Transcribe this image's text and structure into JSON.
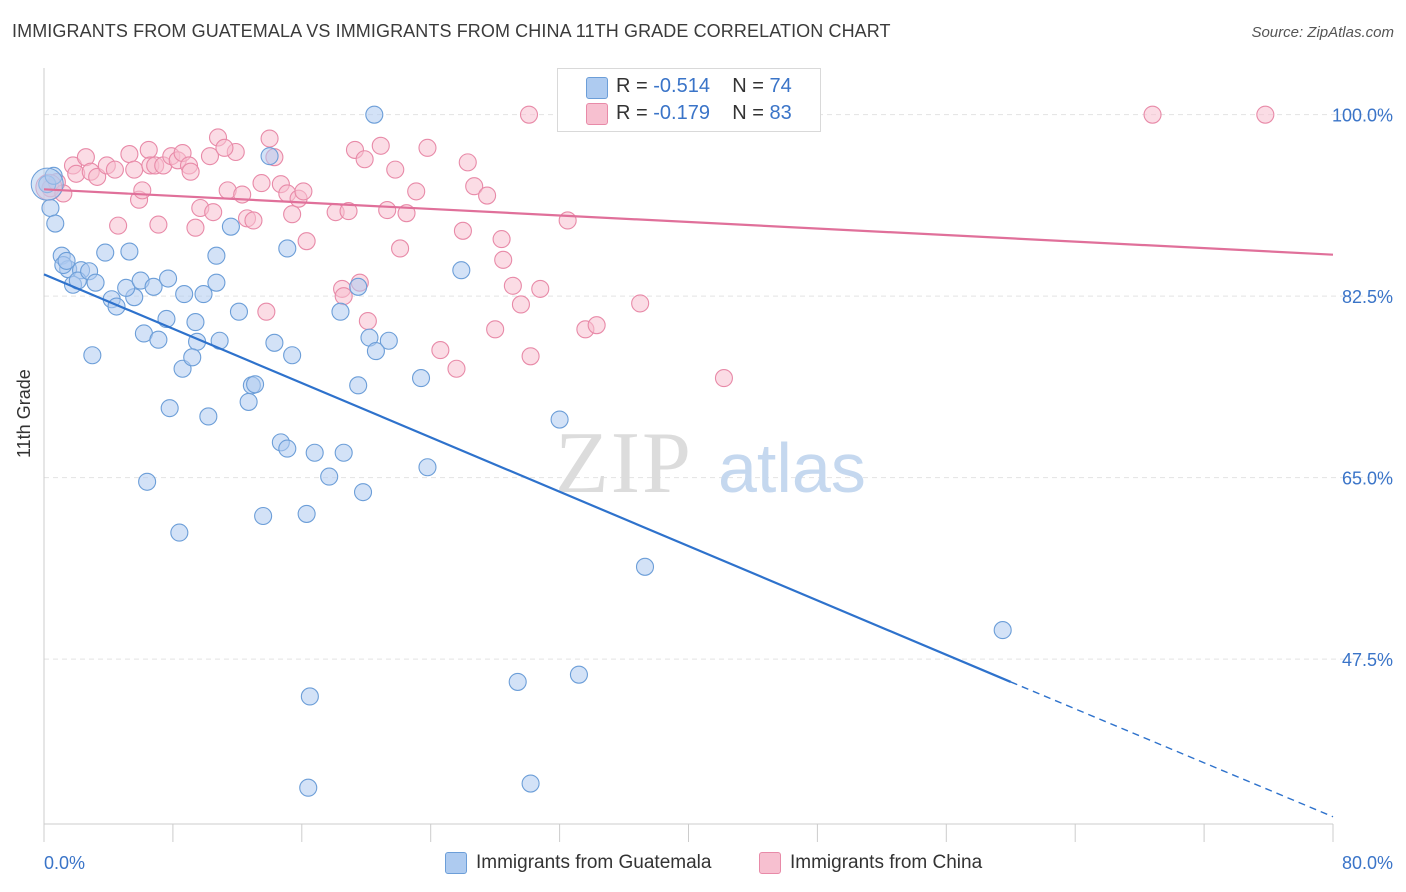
{
  "header": {
    "title": "IMMIGRANTS FROM GUATEMALA VS IMMIGRANTS FROM CHINA 11TH GRADE CORRELATION CHART",
    "source": "Source: ZipAtlas.com"
  },
  "watermark": {
    "zip": "ZIP",
    "atlas": "atlas"
  },
  "legend": {
    "rows": [
      {
        "r_label": "R =",
        "r_value": "-0.514",
        "n_label": "N =",
        "n_value": "74"
      },
      {
        "r_label": "R =",
        "r_value": "-0.179",
        "n_label": "N =",
        "n_value": "83"
      }
    ]
  },
  "colors": {
    "guatemala_fill": "#aecbf0",
    "guatemala_stroke": "#6c9ed8",
    "guatemala_line": "#2e72cc",
    "china_fill": "#f7c0d0",
    "china_stroke": "#e88aa8",
    "china_line": "#e0709a",
    "grid": "#e3e3e3",
    "tick_label": "#3a74c8"
  },
  "chart_data": {
    "type": "scatter",
    "title": "IMMIGRANTS FROM GUATEMALA VS IMMIGRANTS FROM CHINA 11TH GRADE CORRELATION CHART",
    "xlabel": "",
    "ylabel": "11th Grade",
    "xlim": [
      0,
      80
    ],
    "ylim": [
      31.6,
      104.5
    ],
    "x_ticks_labeled": [
      "0.0%",
      "80.0%"
    ],
    "y_ticks": [
      47.5,
      65.0,
      82.5,
      100.0
    ],
    "y_tick_labels": [
      "47.5%",
      "65.0%",
      "82.5%",
      "100.0%"
    ],
    "grid": true,
    "legend_position": "top-center",
    "series": [
      {
        "name": "Immigrants from Guatemala",
        "r": -0.514,
        "n": 74,
        "trend": {
          "x0": 0,
          "y0": 84.6,
          "x1": 60,
          "y1": 45.3,
          "dashed_to": [
            80,
            32.3
          ]
        },
        "points": [
          [
            0.2,
            93.3
          ],
          [
            0.6,
            94.1
          ],
          [
            0.4,
            91.0
          ],
          [
            0.7,
            89.5
          ],
          [
            1.1,
            86.4
          ],
          [
            1.5,
            85.1
          ],
          [
            1.2,
            85.5
          ],
          [
            1.4,
            85.9
          ],
          [
            2.3,
            85.0
          ],
          [
            1.8,
            83.6
          ],
          [
            2.1,
            84.0
          ],
          [
            2.8,
            84.9
          ],
          [
            3.2,
            83.8
          ],
          [
            3.8,
            86.7
          ],
          [
            5.3,
            86.8
          ],
          [
            4.2,
            82.2
          ],
          [
            4.5,
            81.5
          ],
          [
            5.6,
            82.4
          ],
          [
            5.1,
            83.3
          ],
          [
            6.0,
            84.0
          ],
          [
            6.8,
            83.4
          ],
          [
            7.7,
            84.2
          ],
          [
            8.7,
            82.7
          ],
          [
            9.9,
            82.7
          ],
          [
            10.7,
            83.8
          ],
          [
            7.6,
            80.3
          ],
          [
            9.4,
            80.0
          ],
          [
            12.1,
            81.0
          ],
          [
            11.6,
            89.2
          ],
          [
            10.7,
            86.4
          ],
          [
            14.0,
            96.0
          ],
          [
            15.1,
            87.1
          ],
          [
            20.5,
            100.0
          ],
          [
            3.0,
            76.8
          ],
          [
            6.2,
            78.9
          ],
          [
            7.1,
            78.3
          ],
          [
            9.5,
            78.1
          ],
          [
            10.9,
            78.2
          ],
          [
            8.6,
            75.5
          ],
          [
            9.2,
            76.6
          ],
          [
            14.3,
            78.0
          ],
          [
            15.4,
            76.8
          ],
          [
            19.5,
            83.4
          ],
          [
            18.4,
            81.0
          ],
          [
            20.2,
            78.5
          ],
          [
            21.4,
            78.2
          ],
          [
            20.6,
            77.2
          ],
          [
            25.9,
            85.0
          ],
          [
            23.4,
            74.6
          ],
          [
            19.5,
            73.9
          ],
          [
            12.9,
            73.9
          ],
          [
            12.7,
            72.3
          ],
          [
            13.1,
            74.0
          ],
          [
            7.8,
            71.7
          ],
          [
            10.2,
            70.9
          ],
          [
            14.7,
            68.4
          ],
          [
            15.1,
            67.8
          ],
          [
            16.8,
            67.4
          ],
          [
            18.6,
            67.4
          ],
          [
            17.7,
            65.1
          ],
          [
            23.8,
            66.0
          ],
          [
            19.8,
            63.6
          ],
          [
            32.0,
            70.6
          ],
          [
            6.4,
            64.6
          ],
          [
            8.4,
            59.7
          ],
          [
            13.6,
            61.3
          ],
          [
            16.3,
            61.5
          ],
          [
            37.3,
            56.4
          ],
          [
            59.5,
            50.3
          ],
          [
            16.5,
            43.9
          ],
          [
            29.4,
            45.3
          ],
          [
            33.2,
            46.0
          ],
          [
            16.4,
            35.1
          ],
          [
            30.2,
            35.5
          ]
        ]
      },
      {
        "name": "Immigrants from China",
        "r": -0.179,
        "n": 83,
        "trend": {
          "x0": 0,
          "y0": 92.8,
          "x1": 80,
          "y1": 86.5
        },
        "points": [
          [
            0.4,
            92.9
          ],
          [
            0.8,
            93.5
          ],
          [
            1.2,
            92.4
          ],
          [
            1.8,
            95.1
          ],
          [
            2.0,
            94.3
          ],
          [
            2.6,
            95.9
          ],
          [
            2.9,
            94.5
          ],
          [
            3.3,
            94.0
          ],
          [
            3.9,
            95.1
          ],
          [
            4.4,
            94.7
          ],
          [
            4.6,
            89.3
          ],
          [
            5.3,
            96.2
          ],
          [
            5.6,
            94.7
          ],
          [
            5.9,
            91.8
          ],
          [
            6.1,
            92.7
          ],
          [
            6.5,
            96.6
          ],
          [
            6.6,
            95.1
          ],
          [
            6.9,
            95.1
          ],
          [
            7.1,
            89.4
          ],
          [
            7.4,
            95.1
          ],
          [
            7.9,
            96.0
          ],
          [
            8.3,
            95.6
          ],
          [
            8.6,
            96.3
          ],
          [
            9.0,
            95.1
          ],
          [
            9.1,
            94.5
          ],
          [
            9.4,
            89.1
          ],
          [
            9.7,
            91.0
          ],
          [
            10.3,
            96.0
          ],
          [
            10.5,
            90.6
          ],
          [
            10.8,
            97.8
          ],
          [
            11.4,
            92.7
          ],
          [
            11.9,
            96.4
          ],
          [
            12.3,
            92.3
          ],
          [
            12.6,
            90.0
          ],
          [
            13.0,
            89.8
          ],
          [
            13.5,
            93.4
          ],
          [
            14.0,
            97.7
          ],
          [
            14.3,
            95.9
          ],
          [
            14.7,
            93.3
          ],
          [
            15.1,
            92.4
          ],
          [
            15.4,
            90.4
          ],
          [
            15.8,
            91.9
          ],
          [
            16.1,
            92.6
          ],
          [
            18.1,
            90.6
          ],
          [
            18.5,
            83.2
          ],
          [
            18.9,
            90.7
          ],
          [
            19.3,
            96.6
          ],
          [
            19.6,
            83.8
          ],
          [
            19.9,
            95.7
          ],
          [
            20.1,
            80.1
          ],
          [
            20.9,
            97.0
          ],
          [
            21.3,
            90.8
          ],
          [
            21.8,
            94.7
          ],
          [
            22.1,
            87.1
          ],
          [
            22.5,
            90.5
          ],
          [
            23.1,
            92.6
          ],
          [
            23.8,
            96.8
          ],
          [
            24.6,
            77.3
          ],
          [
            25.6,
            75.5
          ],
          [
            26.0,
            88.8
          ],
          [
            26.3,
            95.4
          ],
          [
            26.7,
            93.1
          ],
          [
            27.5,
            92.2
          ],
          [
            28.0,
            79.3
          ],
          [
            28.4,
            88.0
          ],
          [
            28.5,
            86.0
          ],
          [
            29.1,
            83.5
          ],
          [
            29.6,
            81.7
          ],
          [
            30.2,
            76.7
          ],
          [
            30.8,
            83.2
          ],
          [
            32.5,
            89.8
          ],
          [
            33.6,
            79.3
          ],
          [
            34.3,
            79.7
          ],
          [
            36.2,
            99.6
          ],
          [
            37.0,
            81.8
          ],
          [
            42.2,
            74.6
          ],
          [
            13.8,
            81.0
          ],
          [
            11.2,
            96.8
          ],
          [
            16.3,
            87.8
          ],
          [
            18.6,
            82.5
          ],
          [
            30.1,
            100.0
          ],
          [
            68.8,
            100.0
          ],
          [
            75.8,
            100.0
          ]
        ]
      }
    ]
  },
  "bottom_legend": {
    "items": [
      {
        "label": "Immigrants from Guatemala"
      },
      {
        "label": "Immigrants from China"
      }
    ]
  }
}
